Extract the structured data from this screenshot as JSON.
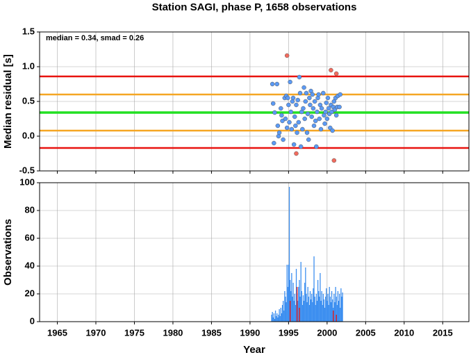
{
  "chart_data": [
    {
      "type": "scatter",
      "title": "Station SAGI, phase P, 1658 observations",
      "ylabel": "Median residual [s]",
      "annotation": "median = 0.34, smad = 0.26",
      "xlim": [
        1962.7,
        2018.4
      ],
      "xticks": [
        1965,
        1970,
        1975,
        1980,
        1985,
        1990,
        1995,
        2000,
        2005,
        2010,
        2015
      ],
      "ylim": [
        -0.5,
        1.5
      ],
      "yticks": [
        -0.5,
        {
          "value": 0.0,
          "label": "0.0"
        },
        0.5,
        {
          "value": 1.0,
          "label": "1.0"
        },
        1.5
      ],
      "grid": true,
      "hlines": [
        {
          "value": 0.86,
          "color": "#e8130f"
        },
        {
          "value": 0.6,
          "color": "#f5a623"
        },
        {
          "value": 0.34,
          "color": "#22e022"
        },
        {
          "value": 0.08,
          "color": "#f5a623"
        },
        {
          "value": -0.17,
          "color": "#e8130f"
        }
      ],
      "series": [
        {
          "color": "#5b9af5",
          "x": [
            1992.9,
            1993.0,
            1993.1,
            1993.2,
            1993.5,
            1993.6,
            1993.7,
            1993.8,
            1994.0,
            1994.1,
            1994.2,
            1994.3,
            1994.5,
            1994.6,
            1994.7,
            1994.8,
            1994.9,
            1995.0,
            1995.1,
            1995.2,
            1995.3,
            1995.4,
            1995.5,
            1995.6,
            1995.7,
            1995.8,
            1995.9,
            1996.0,
            1996.1,
            1996.2,
            1996.3,
            1996.4,
            1996.5,
            1996.6,
            1996.7,
            1996.8,
            1996.9,
            1997.0,
            1997.1,
            1997.2,
            1997.3,
            1997.4,
            1997.5,
            1997.6,
            1997.7,
            1997.8,
            1997.9,
            1998.0,
            1998.1,
            1998.2,
            1998.3,
            1998.4,
            1998.5,
            1998.6,
            1998.7,
            1998.8,
            1998.9,
            1999.0,
            1999.1,
            1999.2,
            1999.3,
            1999.5,
            1999.6,
            1999.7,
            1999.8,
            1999.9,
            2000.0,
            2000.1,
            2000.2,
            2000.3,
            2000.4,
            2000.5,
            2000.6,
            2000.7,
            2000.8,
            2000.9,
            2001.0,
            2001.1,
            2001.2,
            2001.3,
            2001.4,
            2001.6,
            2001.7
          ],
          "values": [
            0.75,
            0.47,
            -0.1,
            0.34,
            0.75,
            0.15,
            0.0,
            0.05,
            0.4,
            0.3,
            0.22,
            -0.05,
            0.55,
            0.25,
            0.58,
            0.12,
            0.55,
            0.45,
            0.2,
            0.78,
            0.35,
            0.1,
            0.5,
            0.55,
            -0.12,
            0.28,
            0.15,
            0.45,
            0.05,
            0.52,
            0.2,
            0.85,
            0.62,
            -0.15,
            0.35,
            0.1,
            0.4,
            0.7,
            0.25,
            0.5,
            0.62,
            0.05,
            0.32,
            -0.05,
            0.55,
            0.45,
            0.65,
            0.28,
            0.6,
            0.4,
            0.15,
            0.5,
            0.22,
            -0.15,
            0.35,
            0.55,
            0.6,
            0.25,
            0.45,
            0.1,
            0.4,
            0.62,
            0.3,
            0.18,
            0.35,
            0.48,
            0.25,
            0.55,
            0.4,
            0.32,
            0.12,
            0.45,
            0.35,
            0.08,
            0.42,
            0.5,
            0.38,
            0.55,
            0.3,
            0.42,
            0.58,
            0.42,
            0.6
          ]
        },
        {
          "color": "#f26b5e",
          "x": [
            1994.8,
            2000.5,
            2001.2,
            1996.0,
            2000.9
          ],
          "values": [
            1.16,
            0.95,
            0.9,
            -0.25,
            -0.35
          ]
        }
      ]
    },
    {
      "type": "bar",
      "xlabel": "Year",
      "ylabel": "Observations",
      "xlim": [
        1962.7,
        2018.4
      ],
      "xticks": [
        1965,
        1970,
        1975,
        1980,
        1985,
        1990,
        1995,
        2000,
        2005,
        2010,
        2015
      ],
      "ylim": [
        0,
        100
      ],
      "yticks": [
        0,
        20,
        40,
        60,
        80,
        100
      ],
      "grid": true,
      "series": [
        {
          "color": "#3d8ff0",
          "x": [
            1992.8,
            1992.9,
            1993.0,
            1993.1,
            1993.2,
            1993.3,
            1993.4,
            1993.5,
            1993.6,
            1993.7,
            1993.8,
            1993.9,
            1994.0,
            1994.1,
            1994.2,
            1994.3,
            1994.4,
            1994.5,
            1994.6,
            1994.7,
            1994.8,
            1994.9,
            1995.0,
            1995.1,
            1995.2,
            1995.3,
            1995.4,
            1995.5,
            1995.6,
            1995.7,
            1995.8,
            1995.9,
            1996.0,
            1996.1,
            1996.2,
            1996.3,
            1996.4,
            1996.5,
            1996.6,
            1996.7,
            1996.8,
            1996.9,
            1997.0,
            1997.1,
            1997.2,
            1997.3,
            1997.4,
            1997.5,
            1997.6,
            1997.7,
            1997.8,
            1997.9,
            1998.0,
            1998.1,
            1998.2,
            1998.3,
            1998.4,
            1998.5,
            1998.6,
            1998.7,
            1998.8,
            1998.9,
            1999.0,
            1999.1,
            1999.2,
            1999.3,
            1999.4,
            1999.5,
            1999.6,
            1999.7,
            1999.8,
            1999.9,
            2000.0,
            2000.1,
            2000.2,
            2000.3,
            2000.4,
            2000.5,
            2000.6,
            2000.7,
            2000.8,
            2000.9,
            2001.0,
            2001.1,
            2001.2,
            2001.3,
            2001.4,
            2001.5,
            2001.6,
            2001.7,
            2001.8,
            2001.9,
            2002.0
          ],
          "values": [
            5,
            7,
            3,
            6,
            2,
            8,
            4,
            6,
            3,
            5,
            9,
            4,
            10,
            6,
            12,
            15,
            8,
            22,
            18,
            14,
            41,
            25,
            41,
            97,
            30,
            22,
            35,
            18,
            28,
            15,
            20,
            12,
            38,
            20,
            15,
            25,
            30,
            18,
            43,
            22,
            12,
            19,
            15,
            28,
            39,
            20,
            14,
            25,
            18,
            12,
            22,
            16,
            20,
            14,
            24,
            47,
            18,
            12,
            20,
            15,
            30,
            22,
            18,
            35,
            15,
            22,
            12,
            20,
            16,
            10,
            18,
            24,
            15,
            20,
            12,
            25,
            18,
            14,
            22,
            16,
            10,
            20,
            14,
            25,
            18,
            12,
            22,
            15,
            20,
            10,
            24,
            18,
            21
          ]
        },
        {
          "color": "#e8130f",
          "x": [
            1995.2,
            1996.1,
            1996.4,
            2000.8,
            2001.2
          ],
          "values": [
            15,
            25,
            10,
            8,
            5
          ]
        }
      ]
    }
  ]
}
